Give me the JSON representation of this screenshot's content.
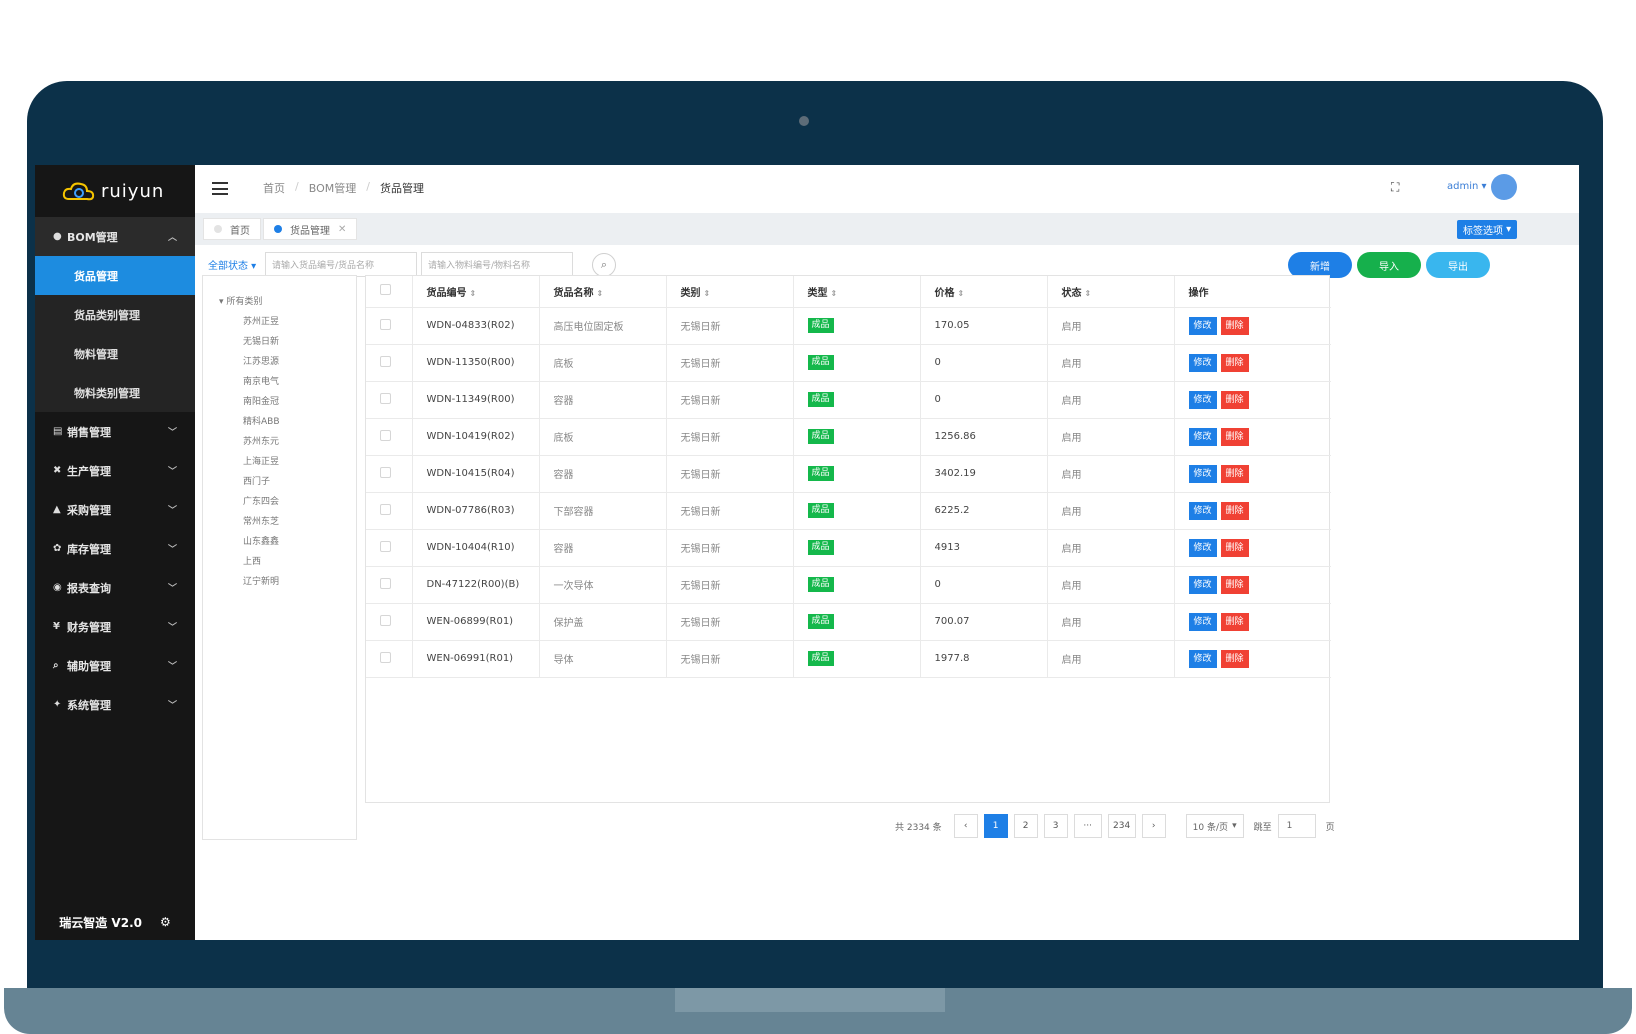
{
  "brand": {
    "name": "ruiyun",
    "version_label": "瑞云智造 V2.0"
  },
  "sidebar": {
    "groups": [
      {
        "label": "BOM管理",
        "icon": "circle-icon",
        "open": true,
        "items": [
          {
            "label": "货品管理",
            "active": true
          },
          {
            "label": "货品类别管理"
          },
          {
            "label": "物料管理"
          },
          {
            "label": "物料类别管理"
          }
        ]
      },
      {
        "label": "销售管理",
        "icon": "document-icon"
      },
      {
        "label": "生产管理",
        "icon": "tools-icon"
      },
      {
        "label": "采购管理",
        "icon": "bag-icon"
      },
      {
        "label": "库存管理",
        "icon": "gear-icon"
      },
      {
        "label": "报表查询",
        "icon": "database-icon"
      },
      {
        "label": "财务管理",
        "icon": "yen-icon"
      },
      {
        "label": "辅助管理",
        "icon": "search-icon"
      },
      {
        "label": "系统管理",
        "icon": "users-icon"
      }
    ]
  },
  "header": {
    "breadcrumb": [
      "首页",
      "BOM管理",
      "货品管理"
    ],
    "user": "admin"
  },
  "tabs": [
    {
      "label": "首页"
    },
    {
      "label": "货品管理",
      "active": true
    }
  ],
  "tab_options_label": "标签选项",
  "toolbar": {
    "status_filter": "全部状态",
    "search1_placeholder": "请输入货品编号/货品名称",
    "search2_placeholder": "请输入物料编号/物料名称",
    "add_label": "新增",
    "import_label": "导入",
    "export_label": "导出"
  },
  "tree": {
    "root": "所有类别",
    "nodes": [
      "苏州正昱",
      "无锡日新",
      "江苏思源",
      "南京电气",
      "南阳金冠",
      "精科ABB",
      "苏州东元",
      "上海正昱",
      "西门子",
      "广东四会",
      "常州东芝",
      "山东鑫鑫",
      "上西",
      "辽宁新明"
    ]
  },
  "table": {
    "columns": [
      "货品编号",
      "货品名称",
      "类别",
      "类型",
      "价格",
      "状态",
      "操作"
    ],
    "rows": [
      {
        "code": "WDN-04833(R02)",
        "name": "高压电位固定板",
        "category": "无锡日新",
        "type": "成品",
        "price": "170.05",
        "status": "启用"
      },
      {
        "code": "WDN-11350(R00)",
        "name": "底板",
        "category": "无锡日新",
        "type": "成品",
        "price": "0",
        "status": "启用"
      },
      {
        "code": "WDN-11349(R00)",
        "name": "容器",
        "category": "无锡日新",
        "type": "成品",
        "price": "0",
        "status": "启用"
      },
      {
        "code": "WDN-10419(R02)",
        "name": "底板",
        "category": "无锡日新",
        "type": "成品",
        "price": "1256.86",
        "status": "启用"
      },
      {
        "code": "WDN-10415(R04)",
        "name": "容器",
        "category": "无锡日新",
        "type": "成品",
        "price": "3402.19",
        "status": "启用"
      },
      {
        "code": "WDN-07786(R03)",
        "name": "下部容器",
        "category": "无锡日新",
        "type": "成品",
        "price": "6225.2",
        "status": "启用"
      },
      {
        "code": "WDN-10404(R10)",
        "name": "容器",
        "category": "无锡日新",
        "type": "成品",
        "price": "4913",
        "status": "启用"
      },
      {
        "code": "DN-47122(R00)(B)",
        "name": "一次导体",
        "category": "无锡日新",
        "type": "成品",
        "price": "0",
        "status": "启用"
      },
      {
        "code": "WEN-06899(R01)",
        "name": "保护盖",
        "category": "无锡日新",
        "type": "成品",
        "price": "700.07",
        "status": "启用"
      },
      {
        "code": "WEN-06991(R01)",
        "name": "导体",
        "category": "无锡日新",
        "type": "成品",
        "price": "1977.8",
        "status": "启用"
      }
    ],
    "edit_label": "修改",
    "delete_label": "删除"
  },
  "pagination": {
    "total_text": "共 2334 条",
    "pages": [
      "1",
      "2",
      "3",
      "···",
      "234"
    ],
    "current": "1",
    "page_size": "10 条/页",
    "jump_label": "跳至",
    "jump_value": "1",
    "page_unit": "页"
  },
  "colors": {
    "frame": "#0c3149",
    "primary": "#1e7fe6",
    "success": "#14b84b",
    "danger": "#f04134",
    "sidebar": "#161616"
  }
}
